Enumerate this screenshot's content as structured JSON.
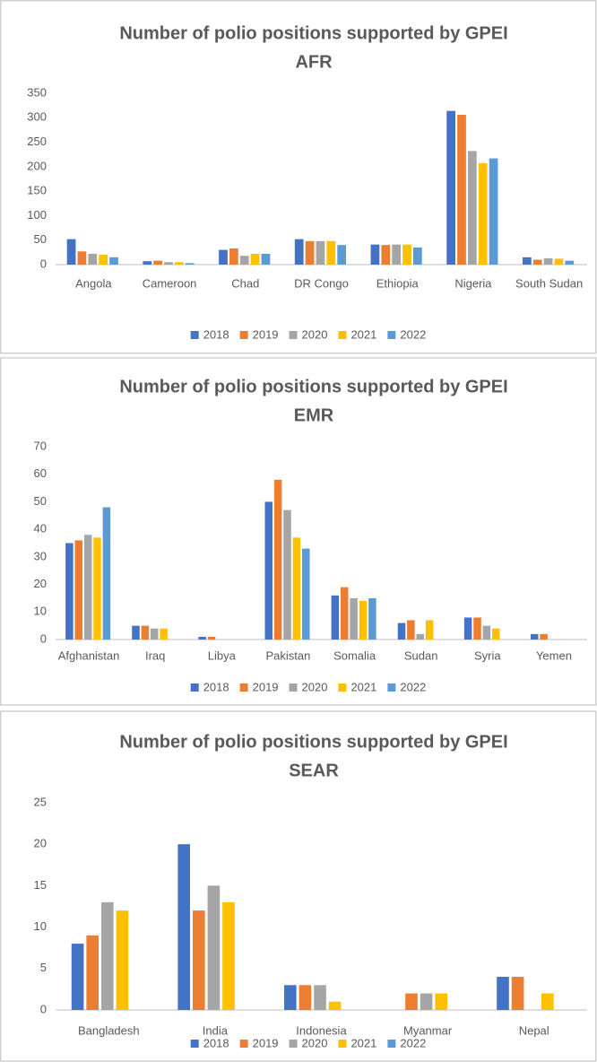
{
  "chart_data": [
    {
      "type": "bar",
      "title": "Number of polio positions supported by GPEI",
      "subtitle": "AFR",
      "categories": [
        "Angola",
        "Cameroon",
        "Chad",
        "DR Congo",
        "Ethiopia",
        "Nigeria",
        "South Sudan"
      ],
      "series": [
        {
          "name": "2018",
          "color": "#4472c4",
          "values": [
            52,
            7,
            30,
            52,
            41,
            314,
            15
          ]
        },
        {
          "name": "2019",
          "color": "#ed7d31",
          "values": [
            27,
            8,
            33,
            48,
            40,
            306,
            10
          ]
        },
        {
          "name": "2020",
          "color": "#a5a5a5",
          "values": [
            22,
            5,
            18,
            48,
            41,
            232,
            13
          ]
        },
        {
          "name": "2021",
          "color": "#ffc000",
          "values": [
            20,
            5,
            22,
            48,
            41,
            207,
            12
          ]
        },
        {
          "name": "2022",
          "color": "#5b9bd5",
          "values": [
            15,
            3,
            22,
            40,
            35,
            217,
            8
          ]
        }
      ],
      "ylim": [
        0,
        350
      ],
      "yticks": [
        0,
        50,
        100,
        150,
        200,
        250,
        300,
        350
      ],
      "legend": "bottom"
    },
    {
      "type": "bar",
      "title": "Number of polio positions supported by GPEI",
      "subtitle": "EMR",
      "categories": [
        "Afghanistan",
        "Iraq",
        "Libya",
        "Pakistan",
        "Somalia",
        "Sudan",
        "Syria",
        "Yemen"
      ],
      "series": [
        {
          "name": "2018",
          "color": "#4472c4",
          "values": [
            35,
            5,
            1,
            50,
            16,
            6,
            8,
            2
          ]
        },
        {
          "name": "2019",
          "color": "#ed7d31",
          "values": [
            36,
            5,
            1,
            58,
            19,
            7,
            8,
            2
          ]
        },
        {
          "name": "2020",
          "color": "#a5a5a5",
          "values": [
            38,
            4,
            0,
            47,
            15,
            2,
            5,
            0
          ]
        },
        {
          "name": "2021",
          "color": "#ffc000",
          "values": [
            37,
            4,
            0,
            37,
            14,
            7,
            4,
            0
          ]
        },
        {
          "name": "2022",
          "color": "#5b9bd5",
          "values": [
            48,
            0,
            0,
            33,
            15,
            0,
            0,
            0
          ]
        }
      ],
      "ylim": [
        0,
        70
      ],
      "yticks": [
        0,
        10,
        20,
        30,
        40,
        50,
        60,
        70
      ],
      "legend": "bottom"
    },
    {
      "type": "bar",
      "title": "Number of polio positions supported by GPEI",
      "subtitle": "SEAR",
      "categories": [
        "Bangladesh",
        "India",
        "Indonesia",
        "Myanmar",
        "Nepal"
      ],
      "series": [
        {
          "name": "2018",
          "color": "#4472c4",
          "values": [
            8,
            20,
            3,
            0,
            4
          ]
        },
        {
          "name": "2019",
          "color": "#ed7d31",
          "values": [
            9,
            12,
            3,
            2,
            4
          ]
        },
        {
          "name": "2020",
          "color": "#a5a5a5",
          "values": [
            13,
            15,
            3,
            2,
            0
          ]
        },
        {
          "name": "2021",
          "color": "#ffc000",
          "values": [
            12,
            13,
            1,
            2,
            2
          ]
        },
        {
          "name": "2022",
          "color": "#5b9bd5",
          "values": [
            0,
            0,
            0,
            0,
            0
          ]
        }
      ],
      "ylim": [
        0,
        25
      ],
      "yticks": [
        0,
        5,
        10,
        15,
        20,
        25
      ],
      "legend": "bottom"
    }
  ]
}
